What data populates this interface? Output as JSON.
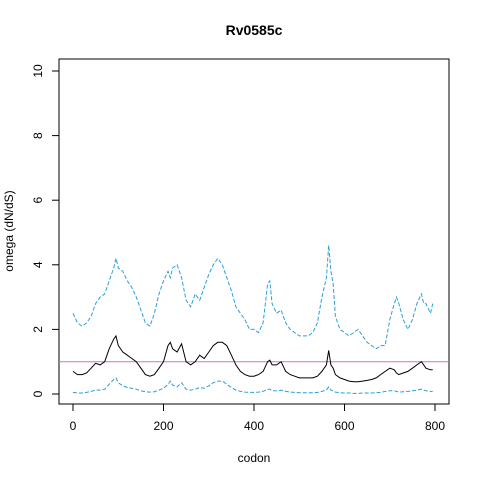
{
  "chart_data": {
    "type": "line",
    "title": "Rv0585c",
    "xlabel": "codon",
    "ylabel": "omega (dN/dS)",
    "xlim": [
      0,
      800
    ],
    "ylim": [
      0,
      10
    ],
    "xticks": [
      "0",
      "200",
      "400",
      "600",
      "800"
    ],
    "yticks": [
      "0",
      "2",
      "4",
      "6",
      "8",
      "10"
    ],
    "grid": false,
    "reference_line": {
      "y": 1,
      "color": "#cc77cc"
    },
    "series": [
      {
        "style": "dashed",
        "color": "#2a9fd8",
        "x": [
          0,
          10,
          20,
          30,
          40,
          50,
          60,
          70,
          80,
          90,
          95,
          100,
          110,
          120,
          130,
          140,
          150,
          160,
          170,
          180,
          190,
          200,
          210,
          215,
          220,
          230,
          240,
          250,
          260,
          270,
          280,
          290,
          300,
          310,
          320,
          330,
          340,
          350,
          360,
          370,
          380,
          390,
          400,
          410,
          420,
          430,
          435,
          440,
          450,
          460,
          470,
          480,
          490,
          500,
          510,
          520,
          530,
          540,
          550,
          560,
          565,
          570,
          575,
          580,
          590,
          600,
          610,
          620,
          630,
          640,
          650,
          660,
          670,
          680,
          690,
          700,
          710,
          715,
          720,
          730,
          740,
          750,
          760,
          770,
          775,
          780,
          790,
          795
        ],
        "y": [
          2.5,
          2.2,
          2.1,
          2.2,
          2.4,
          2.8,
          3.0,
          3.1,
          3.5,
          3.9,
          4.2,
          3.9,
          3.8,
          3.5,
          3.3,
          3.0,
          2.6,
          2.2,
          2.1,
          2.5,
          3.1,
          3.5,
          3.8,
          3.6,
          3.9,
          4.0,
          3.6,
          2.9,
          2.7,
          3.1,
          2.9,
          3.3,
          3.7,
          4.0,
          4.2,
          4.0,
          3.6,
          3.2,
          2.7,
          2.5,
          2.3,
          2.0,
          2.0,
          1.9,
          2.2,
          3.4,
          3.5,
          2.8,
          2.5,
          2.6,
          2.2,
          2.0,
          1.9,
          1.8,
          1.8,
          1.8,
          1.9,
          2.2,
          3.0,
          3.6,
          4.6,
          3.8,
          3.4,
          2.4,
          2.0,
          1.9,
          1.8,
          1.9,
          2.0,
          1.8,
          1.6,
          1.5,
          1.4,
          1.5,
          1.5,
          2.3,
          2.8,
          3.0,
          2.8,
          2.3,
          2.0,
          2.3,
          2.8,
          3.1,
          2.8,
          2.8,
          2.5,
          2.8
        ]
      },
      {
        "style": "solid",
        "color": "#000000",
        "x": [
          0,
          10,
          20,
          30,
          40,
          50,
          60,
          70,
          80,
          90,
          95,
          100,
          110,
          120,
          130,
          140,
          150,
          160,
          170,
          180,
          190,
          200,
          210,
          215,
          220,
          230,
          240,
          250,
          260,
          270,
          280,
          290,
          300,
          310,
          320,
          330,
          340,
          350,
          360,
          370,
          380,
          390,
          400,
          410,
          420,
          430,
          435,
          440,
          450,
          460,
          470,
          480,
          490,
          500,
          510,
          520,
          530,
          540,
          550,
          560,
          565,
          570,
          575,
          580,
          590,
          600,
          610,
          620,
          630,
          640,
          650,
          660,
          670,
          680,
          690,
          700,
          710,
          715,
          720,
          730,
          740,
          750,
          760,
          770,
          775,
          780,
          790,
          795
        ],
        "y": [
          0.7,
          0.6,
          0.6,
          0.65,
          0.8,
          0.95,
          0.9,
          1.0,
          1.4,
          1.7,
          1.8,
          1.5,
          1.3,
          1.2,
          1.1,
          1.0,
          0.8,
          0.6,
          0.55,
          0.6,
          0.8,
          1.0,
          1.5,
          1.6,
          1.4,
          1.3,
          1.55,
          1.0,
          0.9,
          1.0,
          1.2,
          1.1,
          1.3,
          1.5,
          1.6,
          1.6,
          1.5,
          1.2,
          0.9,
          0.7,
          0.6,
          0.55,
          0.55,
          0.6,
          0.7,
          1.0,
          1.05,
          0.9,
          0.9,
          1.0,
          0.7,
          0.6,
          0.55,
          0.5,
          0.5,
          0.5,
          0.5,
          0.55,
          0.7,
          0.9,
          1.35,
          0.9,
          0.8,
          0.6,
          0.5,
          0.45,
          0.4,
          0.38,
          0.38,
          0.4,
          0.42,
          0.45,
          0.5,
          0.6,
          0.7,
          0.8,
          0.75,
          0.65,
          0.6,
          0.65,
          0.7,
          0.8,
          0.9,
          1.0,
          0.9,
          0.8,
          0.75,
          0.75
        ]
      },
      {
        "style": "dashed",
        "color": "#2a9fd8",
        "x": [
          0,
          10,
          20,
          30,
          40,
          50,
          60,
          70,
          80,
          90,
          95,
          100,
          110,
          120,
          130,
          140,
          150,
          160,
          170,
          180,
          190,
          200,
          210,
          215,
          220,
          230,
          240,
          250,
          260,
          270,
          280,
          290,
          300,
          310,
          320,
          330,
          340,
          350,
          360,
          370,
          380,
          390,
          400,
          410,
          420,
          430,
          435,
          440,
          450,
          460,
          470,
          480,
          490,
          500,
          510,
          520,
          530,
          540,
          550,
          560,
          565,
          570,
          575,
          580,
          590,
          600,
          610,
          620,
          630,
          640,
          650,
          660,
          670,
          680,
          690,
          700,
          710,
          715,
          720,
          730,
          740,
          750,
          760,
          770,
          775,
          780,
          790,
          795
        ],
        "y": [
          0.05,
          0.03,
          0.03,
          0.05,
          0.08,
          0.12,
          0.12,
          0.15,
          0.3,
          0.45,
          0.5,
          0.35,
          0.25,
          0.2,
          0.18,
          0.15,
          0.1,
          0.07,
          0.06,
          0.07,
          0.12,
          0.18,
          0.3,
          0.4,
          0.28,
          0.22,
          0.35,
          0.15,
          0.12,
          0.15,
          0.2,
          0.18,
          0.25,
          0.35,
          0.4,
          0.4,
          0.3,
          0.2,
          0.12,
          0.08,
          0.06,
          0.05,
          0.05,
          0.06,
          0.08,
          0.15,
          0.15,
          0.1,
          0.1,
          0.12,
          0.08,
          0.06,
          0.05,
          0.04,
          0.04,
          0.04,
          0.04,
          0.05,
          0.08,
          0.12,
          0.22,
          0.12,
          0.1,
          0.06,
          0.04,
          0.03,
          0.03,
          0.02,
          0.02,
          0.03,
          0.03,
          0.03,
          0.04,
          0.05,
          0.08,
          0.1,
          0.1,
          0.08,
          0.06,
          0.07,
          0.08,
          0.1,
          0.12,
          0.15,
          0.12,
          0.1,
          0.08,
          0.08
        ]
      }
    ]
  }
}
